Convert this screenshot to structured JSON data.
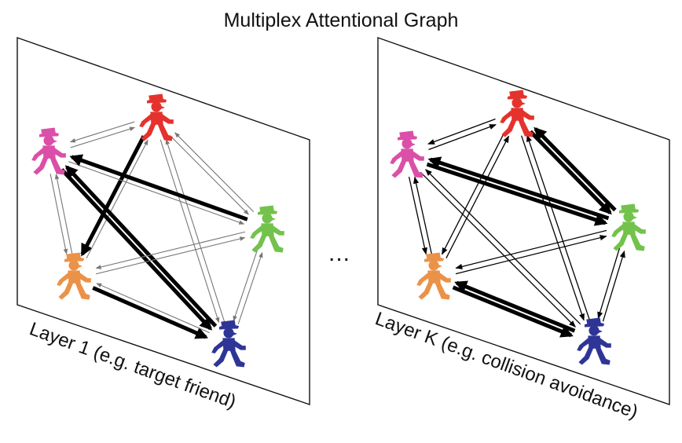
{
  "title": "Multiplex Attentional Graph",
  "ellipsis": "...",
  "colors": {
    "red": "#e5322d",
    "pink": "#db4fa8",
    "green": "#73c24c",
    "orange": "#eb9249",
    "blue": "#2f3597",
    "panel_border": "#111111"
  },
  "layers": [
    {
      "label": "Layer 1 (e.g. target friend)",
      "agents": [
        "red",
        "pink",
        "green",
        "orange",
        "blue"
      ]
    },
    {
      "label": "Layer K (e.g. collision avoidance)",
      "agents": [
        "red",
        "pink",
        "green",
        "orange",
        "blue"
      ]
    }
  ]
}
